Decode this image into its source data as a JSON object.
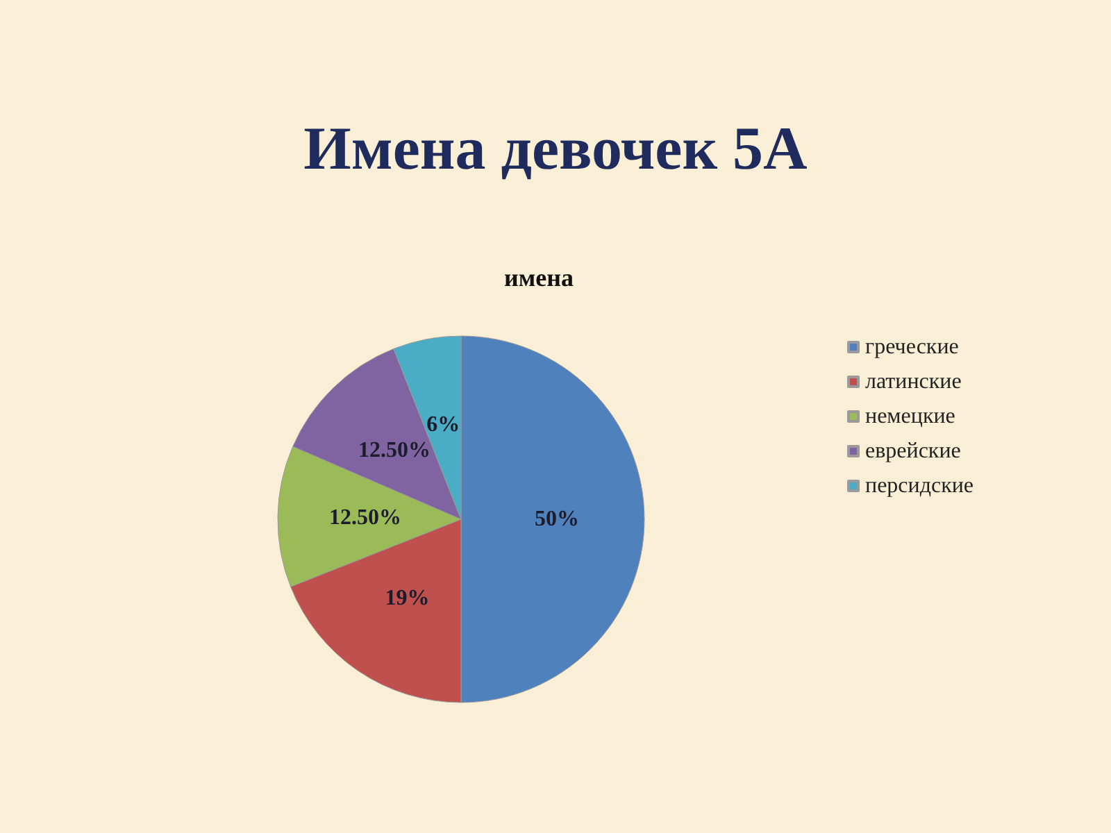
{
  "chart_data": {
    "type": "pie",
    "title": "Имена девочек 5А",
    "subtitle": "имена",
    "categories": [
      "греческие",
      "латинские",
      "немецкие",
      "еврейские",
      "персидские"
    ],
    "values": [
      50,
      19,
      12.5,
      12.5,
      6
    ],
    "value_labels": [
      "50%",
      "19%",
      "12.50%",
      "12.50%",
      "6%"
    ],
    "colors": [
      "#4f81bd",
      "#c0504d",
      "#9bbb59",
      "#8064a2",
      "#4bacc6"
    ],
    "legend": "right"
  }
}
